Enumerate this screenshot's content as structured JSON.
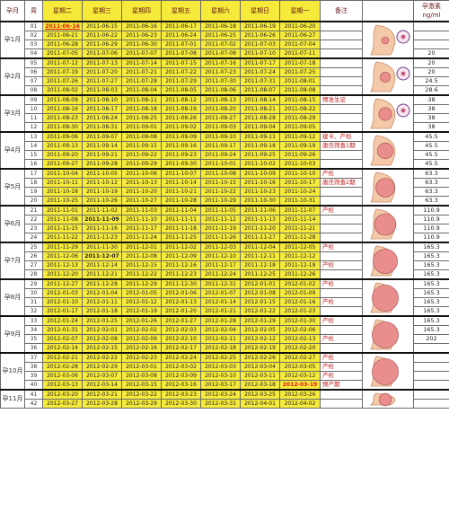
{
  "headers": {
    "month": "孕月",
    "week": "周",
    "days": [
      "星期二",
      "星期三",
      "星期四",
      "星期五",
      "星期六",
      "星期日",
      "星期一"
    ],
    "note": "备注",
    "conc": "孕激素ng/ml"
  },
  "groups": [
    {
      "label": "孕1月",
      "weeks": [
        {
          "w": "01",
          "d": [
            "2011-06-14",
            "2011-06-15",
            "2011-06-16",
            "2011-06-17",
            "2011-06-18",
            "2011-06-19",
            "2011-06-20"
          ],
          "note": "",
          "conc": ""
        },
        {
          "w": "02",
          "d": [
            "2011-06-21",
            "2011-06-22",
            "2011-06-23",
            "2011-06-24",
            "2011-06-25",
            "2011-06-26",
            "2011-06-27"
          ],
          "note": "",
          "conc": ""
        },
        {
          "w": "03",
          "d": [
            "2011-06-28",
            "2011-06-29",
            "2011-06-30",
            "2011-07-01",
            "2011-07-02",
            "2011-07-03",
            "2011-07-04"
          ],
          "note": "",
          "conc": ""
        },
        {
          "w": "04",
          "d": [
            "2011-07-05",
            "2011-07-06",
            "2011-07-07",
            "2011-07-08",
            "2011-07-09",
            "2011-07-10",
            "2011-07-11"
          ],
          "note": "",
          "conc": "20"
        }
      ]
    },
    {
      "label": "孕2月",
      "weeks": [
        {
          "w": "05",
          "d": [
            "2011-07-12",
            "2011-07-13",
            "2011-07-14",
            "2011-07-15",
            "2011-07-16",
            "2011-07-17",
            "2011-07-18"
          ],
          "note": "",
          "conc": "20"
        },
        {
          "w": "06",
          "d": [
            "2011-07-19",
            "2011-07-20",
            "2011-07-21",
            "2011-07-22",
            "2011-07-23",
            "2011-07-24",
            "2011-07-25"
          ],
          "note": "",
          "conc": "20"
        },
        {
          "w": "07",
          "d": [
            "2011-07-26",
            "2011-07-27",
            "2011-07-28",
            "2011-07-29",
            "2011-07-30",
            "2011-07-31",
            "2011-08-01"
          ],
          "note": "",
          "conc": "24.5"
        },
        {
          "w": "08",
          "d": [
            "2011-08-02",
            "2011-08-03",
            "2011-08-04",
            "2011-08-05",
            "2011-08-06",
            "2011-08-07",
            "2011-08-08"
          ],
          "note": "",
          "conc": "28.6"
        }
      ]
    },
    {
      "label": "孕3月",
      "weeks": [
        {
          "w": "09",
          "d": [
            "2011-08-09",
            "2011-08-10",
            "2011-08-11",
            "2011-08-12",
            "2011-08-13",
            "2011-08-14",
            "2011-08-15"
          ],
          "note": "预准生证",
          "conc": "38"
        },
        {
          "w": "10",
          "d": [
            "2011-08-16",
            "2011-08-17",
            "2011-08-18",
            "2011-08-19",
            "2011-08-20",
            "2011-08-21",
            "2011-08-22"
          ],
          "note": "",
          "conc": "38"
        },
        {
          "w": "11",
          "d": [
            "2011-08-23",
            "2011-08-24",
            "2011-08-25",
            "2011-08-26",
            "2011-08-27",
            "2011-08-28",
            "2011-08-29"
          ],
          "note": "",
          "conc": "38"
        },
        {
          "w": "12",
          "d": [
            "2011-08-30",
            "2011-08-31",
            "2011-09-01",
            "2011-09-02",
            "2011-09-03",
            "2011-09-04",
            "2011-09-05"
          ],
          "note": "",
          "conc": "38"
        }
      ]
    },
    {
      "label": "孕4月",
      "weeks": [
        {
          "w": "13",
          "d": [
            "2011-09-06",
            "2011-09-07",
            "2011-09-08",
            "2011-09-09",
            "2011-09-10",
            "2011-09-11",
            "2011-09-12"
          ],
          "note": "建卡、产检",
          "conc": "45.5"
        },
        {
          "w": "14",
          "d": [
            "2011-09-13",
            "2011-09-14",
            "2011-09-15",
            "2011-09-16",
            "2011-09-17",
            "2011-09-18",
            "2011-09-19"
          ],
          "note": "唐氏筛查1期",
          "conc": "45.5"
        },
        {
          "w": "15",
          "d": [
            "2011-09-20",
            "2011-09-21",
            "2011-09-22",
            "2011-09-23",
            "2011-09-24",
            "2011-09-25",
            "2011-09-26"
          ],
          "note": "",
          "conc": "45.5"
        },
        {
          "w": "16",
          "d": [
            "2011-09-27",
            "2011-09-28",
            "2011-09-29",
            "2011-09-30",
            "2011-10-01",
            "2011-10-02",
            "2011-10-03"
          ],
          "note": "",
          "conc": "45.5"
        }
      ]
    },
    {
      "label": "孕5月",
      "weeks": [
        {
          "w": "17",
          "d": [
            "2011-10-04",
            "2011-10-05",
            "2011-10-06",
            "2011-10-07",
            "2011-10-08",
            "2011-10-09",
            "2011-10-10"
          ],
          "note": "产检",
          "conc": "63.3"
        },
        {
          "w": "18",
          "d": [
            "2011-10-11",
            "2011-10-12",
            "2011-10-13",
            "2011-10-14",
            "2011-10-15",
            "2011-10-16",
            "2011-10-17"
          ],
          "note": "唐氏筛查2期",
          "conc": "63.3"
        },
        {
          "w": "19",
          "d": [
            "2011-10-18",
            "2011-10-19",
            "2011-10-20",
            "2011-10-21",
            "2011-10-22",
            "2011-10-23",
            "2011-10-24"
          ],
          "note": "",
          "conc": "63.3"
        },
        {
          "w": "20",
          "d": [
            "2011-10-25",
            "2011-10-26",
            "2011-10-27",
            "2011-10-28",
            "2011-10-29",
            "2011-10-30",
            "2011-10-31"
          ],
          "note": "",
          "conc": "63.3"
        }
      ]
    },
    {
      "label": "孕6月",
      "weeks": [
        {
          "w": "21",
          "d": [
            "2011-11-01",
            "2011-11-02",
            "2011-11-03",
            "2011-11-04",
            "2011-11-05",
            "2011-11-06",
            "2011-11-07"
          ],
          "note": "产检",
          "conc": "110.9"
        },
        {
          "w": "22",
          "d": [
            "2011-11-08",
            "2011-11-09",
            "2011-11-10",
            "2011-11-11",
            "2011-11-12",
            "2011-11-13",
            "2011-11-14"
          ],
          "note": "",
          "conc": "110.9"
        },
        {
          "w": "23",
          "d": [
            "2011-11-15",
            "2011-11-16",
            "2011-11-17",
            "2011-11-18",
            "2011-11-19",
            "2011-11-20",
            "2011-11-21"
          ],
          "note": "",
          "conc": "110.9"
        },
        {
          "w": "24",
          "d": [
            "2011-11-22",
            "2011-11-23",
            "2011-11-24",
            "2011-11-25",
            "2011-11-26",
            "2011-11-27",
            "2011-11-28"
          ],
          "note": "",
          "conc": "110.9"
        }
      ]
    },
    {
      "label": "孕7月",
      "weeks": [
        {
          "w": "25",
          "d": [
            "2011-11-29",
            "2011-11-30",
            "2011-12-01",
            "2011-12-02",
            "2011-12-03",
            "2011-12-04",
            "2011-12-05"
          ],
          "note": "产检",
          "conc": "165.3"
        },
        {
          "w": "26",
          "d": [
            "2011-12-06",
            "2011-12-07",
            "2011-12-08",
            "2011-12-09",
            "2011-12-10",
            "2011-12-11",
            "2011-12-12"
          ],
          "note": "",
          "conc": "165.3"
        },
        {
          "w": "27",
          "d": [
            "2011-12-13",
            "2011-12-14",
            "2011-12-15",
            "2011-12-16",
            "2011-12-17",
            "2011-12-18",
            "2011-12-19"
          ],
          "note": "产检",
          "conc": "165.3"
        },
        {
          "w": "28",
          "d": [
            "2011-12-20",
            "2011-12-21",
            "2011-12-22",
            "2011-12-23",
            "2011-12-24",
            "2011-12-25",
            "2011-12-26"
          ],
          "note": "",
          "conc": "165.3"
        }
      ]
    },
    {
      "label": "孕8月",
      "weeks": [
        {
          "w": "29",
          "d": [
            "2011-12-27",
            "2011-12-28",
            "2011-12-29",
            "2011-12-30",
            "2011-12-31",
            "2012-01-01",
            "2012-01-02"
          ],
          "note": "产检",
          "conc": "165.3"
        },
        {
          "w": "30",
          "d": [
            "2012-01-03",
            "2012-01-04",
            "2012-01-05",
            "2012-01-06",
            "2012-01-07",
            "2012-01-08",
            "2012-01-09"
          ],
          "note": "",
          "conc": "165.3"
        },
        {
          "w": "31",
          "d": [
            "2012-01-10",
            "2012-01-11",
            "2012-01-12",
            "2012-01-13",
            "2012-01-14",
            "2012-01-15",
            "2012-01-16"
          ],
          "note": "产检",
          "conc": "165.3"
        },
        {
          "w": "32",
          "d": [
            "2012-01-17",
            "2012-01-18",
            "2012-01-19",
            "2012-01-20",
            "2012-01-21",
            "2012-01-22",
            "2012-01-23"
          ],
          "note": "",
          "conc": "165.3"
        }
      ]
    },
    {
      "label": "孕9月",
      "weeks": [
        {
          "w": "33",
          "d": [
            "2012-01-24",
            "2012-01-25",
            "2012-01-26",
            "2012-01-27",
            "2012-01-28",
            "2012-01-29",
            "2012-01-30"
          ],
          "note": "产检",
          "conc": "165.3"
        },
        {
          "w": "34",
          "d": [
            "2012-01-31",
            "2012-02-01",
            "2012-02-02",
            "2012-02-03",
            "2012-02-04",
            "2012-02-05",
            "2012-02-06"
          ],
          "note": "",
          "conc": "165.3"
        },
        {
          "w": "35",
          "d": [
            "2012-02-07",
            "2012-02-08",
            "2012-02-09",
            "2012-02-10",
            "2012-02-11",
            "2012-02-12",
            "2012-02-13"
          ],
          "note": "产检",
          "conc": "202"
        },
        {
          "w": "36",
          "d": [
            "2012-02-14",
            "2012-02-15",
            "2012-02-16",
            "2012-02-17",
            "2012-02-18",
            "2012-02-19",
            "2012-02-20"
          ],
          "note": "",
          "conc": ""
        }
      ]
    },
    {
      "label": "孕10月",
      "weeks": [
        {
          "w": "37",
          "d": [
            "2012-02-21",
            "2012-02-22",
            "2012-02-23",
            "2012-02-24",
            "2012-02-25",
            "2012-02-26",
            "2012-02-27"
          ],
          "note": "产检",
          "conc": ""
        },
        {
          "w": "38",
          "d": [
            "2012-02-28",
            "2012-02-29",
            "2012-03-01",
            "2012-03-02",
            "2012-03-03",
            "2012-03-04",
            "2012-03-05"
          ],
          "note": "产检",
          "conc": ""
        },
        {
          "w": "39",
          "d": [
            "2012-03-06",
            "2012-03-07",
            "2012-03-08",
            "2012-03-09",
            "2012-03-10",
            "2012-03-11",
            "2012-03-12"
          ],
          "note": "产检",
          "conc": ""
        },
        {
          "w": "40",
          "d": [
            "2012-03-13",
            "2012-03-14",
            "2012-03-15",
            "2012-03-16",
            "2012-03-17",
            "2012-03-18",
            "2012-03-19"
          ],
          "note": "预产期",
          "conc": ""
        }
      ]
    },
    {
      "label": "孕11月",
      "weeks": [
        {
          "w": "41",
          "d": [
            "2012-03-20",
            "2012-03-21",
            "2012-03-22",
            "2012-03-23",
            "2012-03-24",
            "2012-03-25",
            "2012-03-26"
          ],
          "note": "",
          "conc": ""
        },
        {
          "w": "42",
          "d": [
            "2012-03-27",
            "2012-03-28",
            "2012-03-29",
            "2012-03-30",
            "2012-03-31",
            "2012-04-01",
            "2012-04-02"
          ],
          "note": "",
          "conc": ""
        }
      ]
    }
  ],
  "highlights": {
    "red": [
      "2011-06-14",
      "2012-03-19"
    ],
    "bold": [
      "2011-11-09",
      "2011-12-07"
    ]
  },
  "colors": {
    "date_fill": "#f6ea3a",
    "note_text": "#c01818",
    "highlight": "#e01818"
  }
}
